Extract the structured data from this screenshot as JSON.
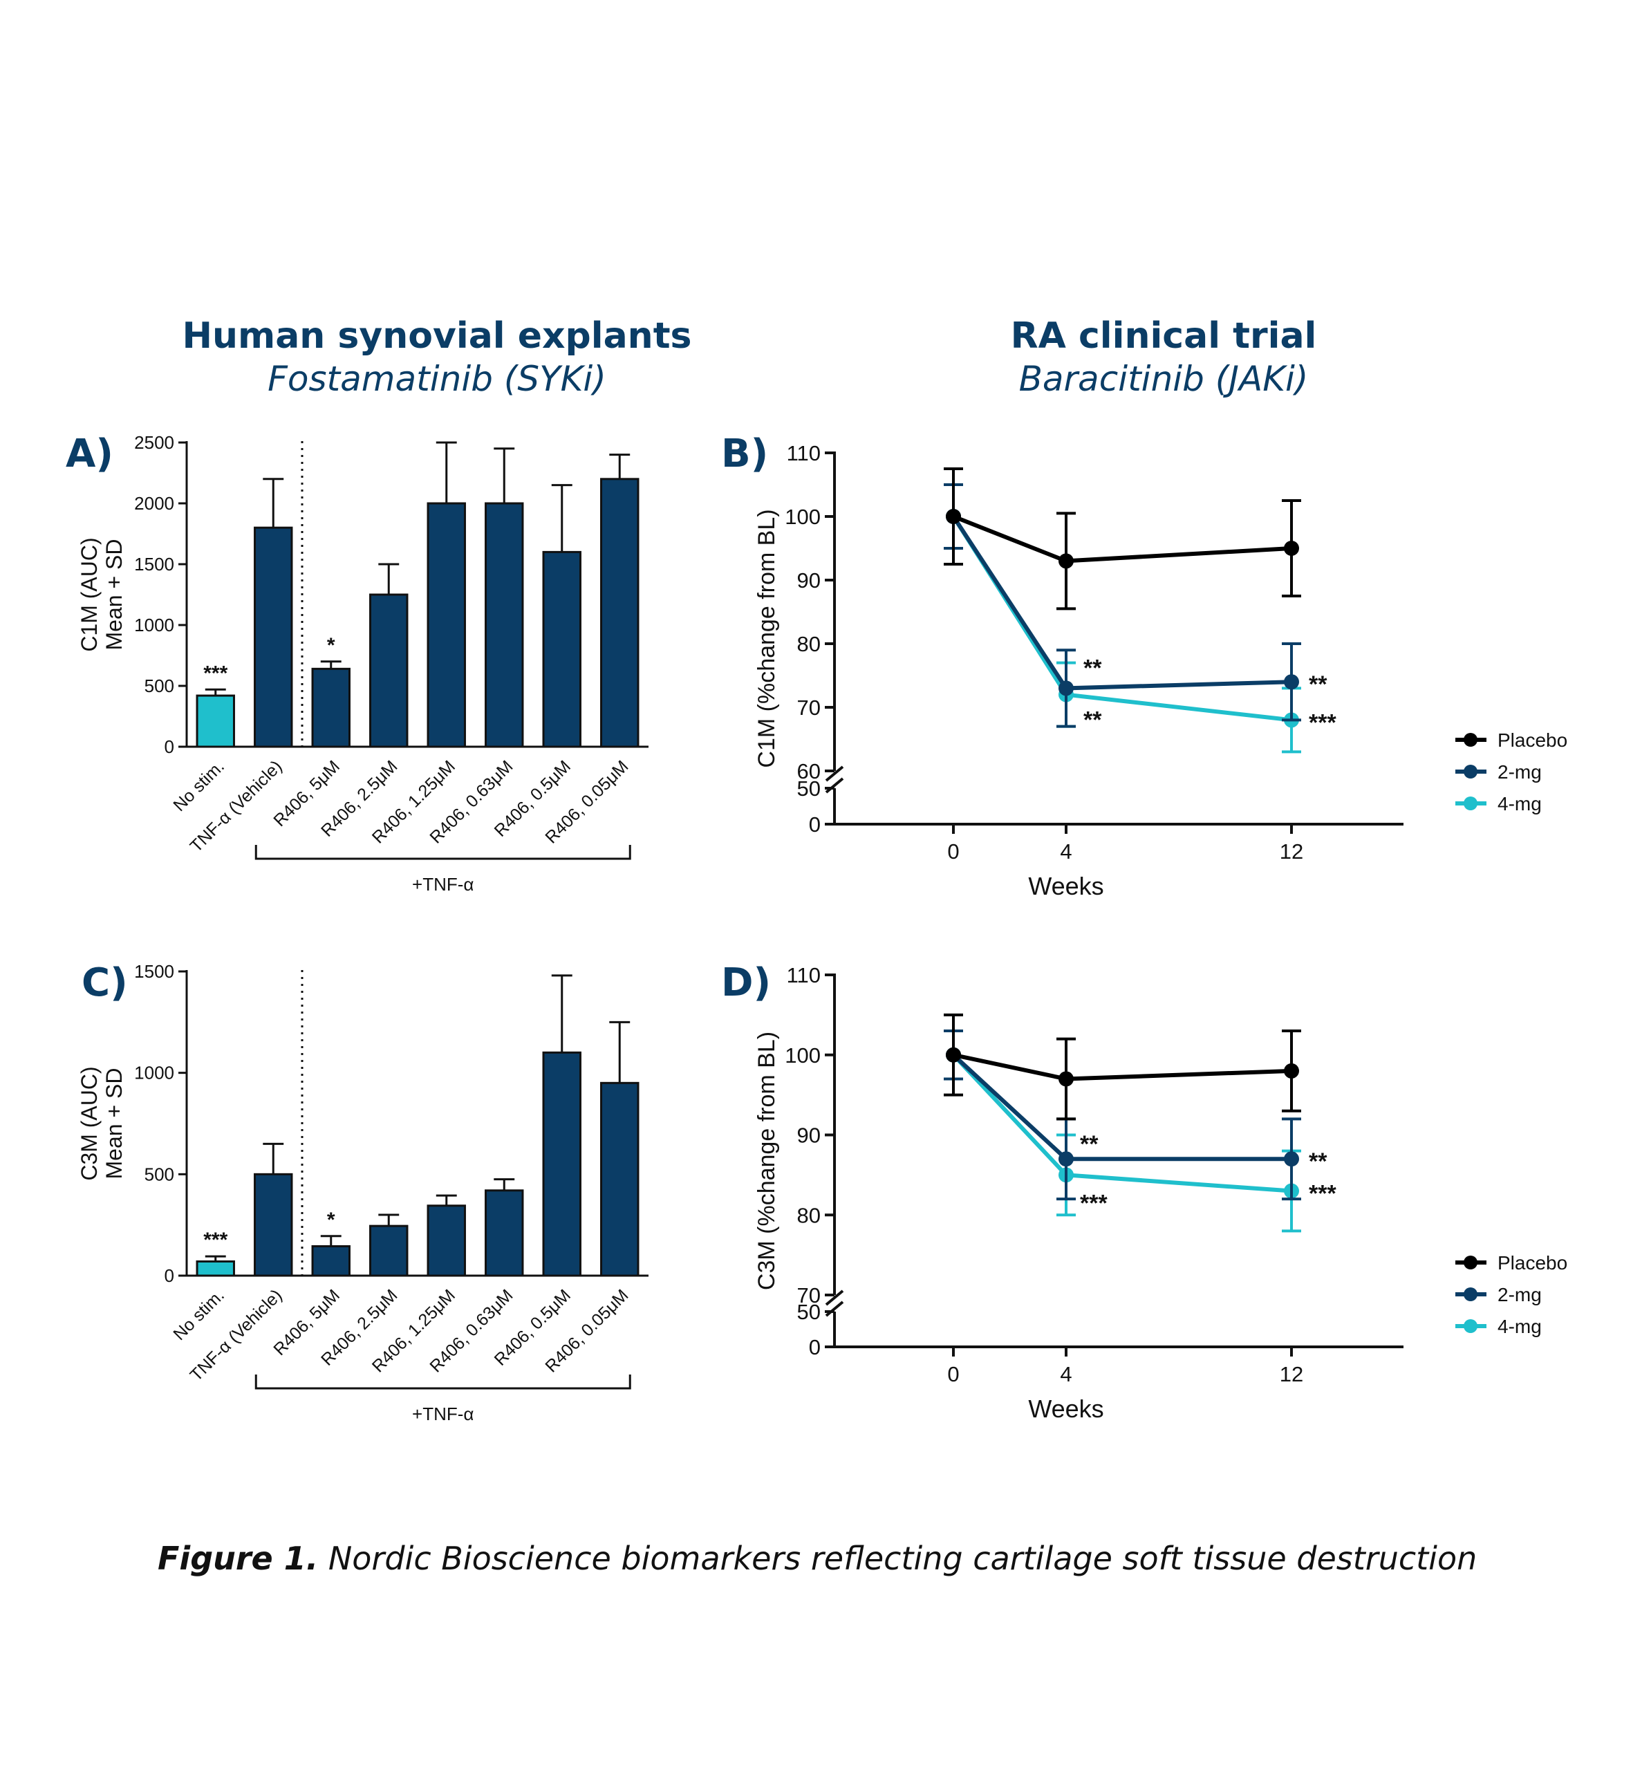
{
  "headers": {
    "left_title": "Human synovial explants",
    "left_subtitle": "Fostamatinib (SYKi)",
    "right_title": "RA clinical trial",
    "right_subtitle": "Baracitinib (JAKi)"
  },
  "caption": {
    "bold": "Figure 1.",
    "text": " Nordic Bioscience biomarkers reflecting cartilage soft tissue destruction"
  },
  "colors": {
    "dark_blue": "#0b3d66",
    "light_blue": "#1fbfcc",
    "black": "#000000"
  },
  "chart_data": [
    {
      "panel": "A)",
      "type": "bar",
      "ylabel_line1": "C1M (AUC)",
      "ylabel_line2": "Mean + SD",
      "ylim": [
        0,
        2500
      ],
      "yticks": [
        "0",
        "500",
        "1000",
        "1500",
        "2000",
        "2500"
      ],
      "categories": [
        "No stim.",
        "TNF-α (Vehicle)",
        "R406, 5μM",
        "R406, 2.5μM",
        "R406, 1.25μM",
        "R406, 0.63μM",
        "R406, 0.5μM",
        "R406, 0.05μM"
      ],
      "values": [
        420,
        1800,
        640,
        1250,
        2000,
        2000,
        1600,
        2200
      ],
      "errors": [
        50,
        400,
        60,
        250,
        500,
        450,
        550,
        200
      ],
      "bar_colors": [
        "#1fbfcc",
        "#0b3d66",
        "#0b3d66",
        "#0b3d66",
        "#0b3d66",
        "#0b3d66",
        "#0b3d66",
        "#0b3d66"
      ],
      "annotations": [
        "***",
        "",
        "*",
        "",
        "",
        "",
        "",
        ""
      ],
      "group_label": "+TNF-α"
    },
    {
      "panel": "C)",
      "type": "bar",
      "ylabel_line1": "C3M (AUC)",
      "ylabel_line2": "Mean + SD",
      "ylim": [
        0,
        1500
      ],
      "yticks": [
        "0",
        "500",
        "1000",
        "1500"
      ],
      "categories": [
        "No stim.",
        "TNF-α (Vehicle)",
        "R406, 5μM",
        "R406, 2.5μM",
        "R406, 1.25μM",
        "R406, 0.63μM",
        "R406, 0.5μM",
        "R406, 0.05μM"
      ],
      "values": [
        70,
        500,
        145,
        245,
        345,
        420,
        1100,
        950
      ],
      "errors": [
        25,
        150,
        50,
        55,
        50,
        55,
        380,
        300
      ],
      "bar_colors": [
        "#1fbfcc",
        "#0b3d66",
        "#0b3d66",
        "#0b3d66",
        "#0b3d66",
        "#0b3d66",
        "#0b3d66",
        "#0b3d66"
      ],
      "annotations": [
        "***",
        "",
        "*",
        "",
        "",
        "",
        "",
        ""
      ],
      "group_label": "+TNF-α"
    },
    {
      "panel": "B)",
      "type": "line",
      "ylabel": "C1M (%change from BL)",
      "xlabel": "Weeks",
      "x": [
        0,
        4,
        12
      ],
      "xticks": [
        "0",
        "4",
        "12"
      ],
      "yrange_upper": [
        60,
        110
      ],
      "yticks_upper": [
        "60",
        "70",
        "80",
        "90",
        "100",
        "110"
      ],
      "yticks_lower": [
        "0",
        "50"
      ],
      "series": [
        {
          "name": "Placebo",
          "color": "#000000",
          "values": [
            100,
            93,
            95
          ],
          "errors": [
            7.5,
            7.5,
            7.5
          ],
          "annotations": [
            "",
            "",
            ""
          ]
        },
        {
          "name": "2-mg",
          "color": "#0b3d66",
          "values": [
            100,
            73,
            74
          ],
          "errors": [
            5,
            6,
            6
          ],
          "annotations": [
            "",
            "**",
            "**"
          ]
        },
        {
          "name": "4-mg",
          "color": "#1fbfcc",
          "values": [
            100,
            72,
            68
          ],
          "errors": [
            5,
            5,
            5
          ],
          "annotations": [
            "",
            "**",
            "***"
          ]
        }
      ]
    },
    {
      "panel": "D)",
      "type": "line",
      "ylabel": "C3M (%change from BL)",
      "xlabel": "Weeks",
      "x": [
        0,
        4,
        12
      ],
      "xticks": [
        "0",
        "4",
        "12"
      ],
      "yrange_upper": [
        70,
        110
      ],
      "yticks_upper": [
        "70",
        "80",
        "90",
        "100",
        "110"
      ],
      "yticks_lower": [
        "0",
        "50"
      ],
      "series": [
        {
          "name": "Placebo",
          "color": "#000000",
          "values": [
            100,
            97,
            98
          ],
          "errors": [
            5,
            5,
            5
          ],
          "annotations": [
            "",
            "",
            ""
          ]
        },
        {
          "name": "2-mg",
          "color": "#0b3d66",
          "values": [
            100,
            87,
            87
          ],
          "errors": [
            3,
            5,
            5
          ],
          "annotations": [
            "",
            "**",
            "**"
          ]
        },
        {
          "name": "4-mg",
          "color": "#1fbfcc",
          "values": [
            100,
            85,
            83
          ],
          "errors": [
            3,
            5,
            5
          ],
          "annotations": [
            "",
            "***",
            "***"
          ]
        }
      ]
    }
  ]
}
